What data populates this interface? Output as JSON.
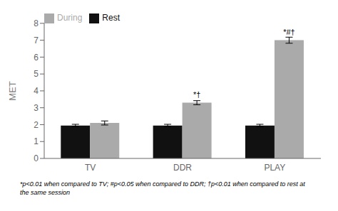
{
  "chart_data": {
    "type": "bar",
    "categories": [
      "TV",
      "DDR",
      "PLAY"
    ],
    "series": [
      {
        "name": "Rest",
        "color": "#111111",
        "values": [
          1.95,
          1.95,
          1.95
        ],
        "errors": [
          0.07,
          0.07,
          0.07
        ]
      },
      {
        "name": "During",
        "color": "#aaaaaa",
        "values": [
          2.1,
          3.3,
          7.0
        ],
        "errors": [
          0.12,
          0.12,
          0.18
        ]
      }
    ],
    "ylabel": "MET",
    "ylim": [
      0,
      8
    ],
    "yticks": [
      0,
      1,
      2,
      3,
      4,
      5,
      6,
      7,
      8
    ],
    "annotations": [
      {
        "category": "DDR",
        "series": "During",
        "text": "*†"
      },
      {
        "category": "PLAY",
        "series": "During",
        "text": "*#†"
      }
    ],
    "footnote": "*p<0.01 when compared to TV; #p<0.05 when compared to DDR; †p<0.01 when compared to rest at\nthe same session",
    "legend": "upper left",
    "grid": false
  }
}
